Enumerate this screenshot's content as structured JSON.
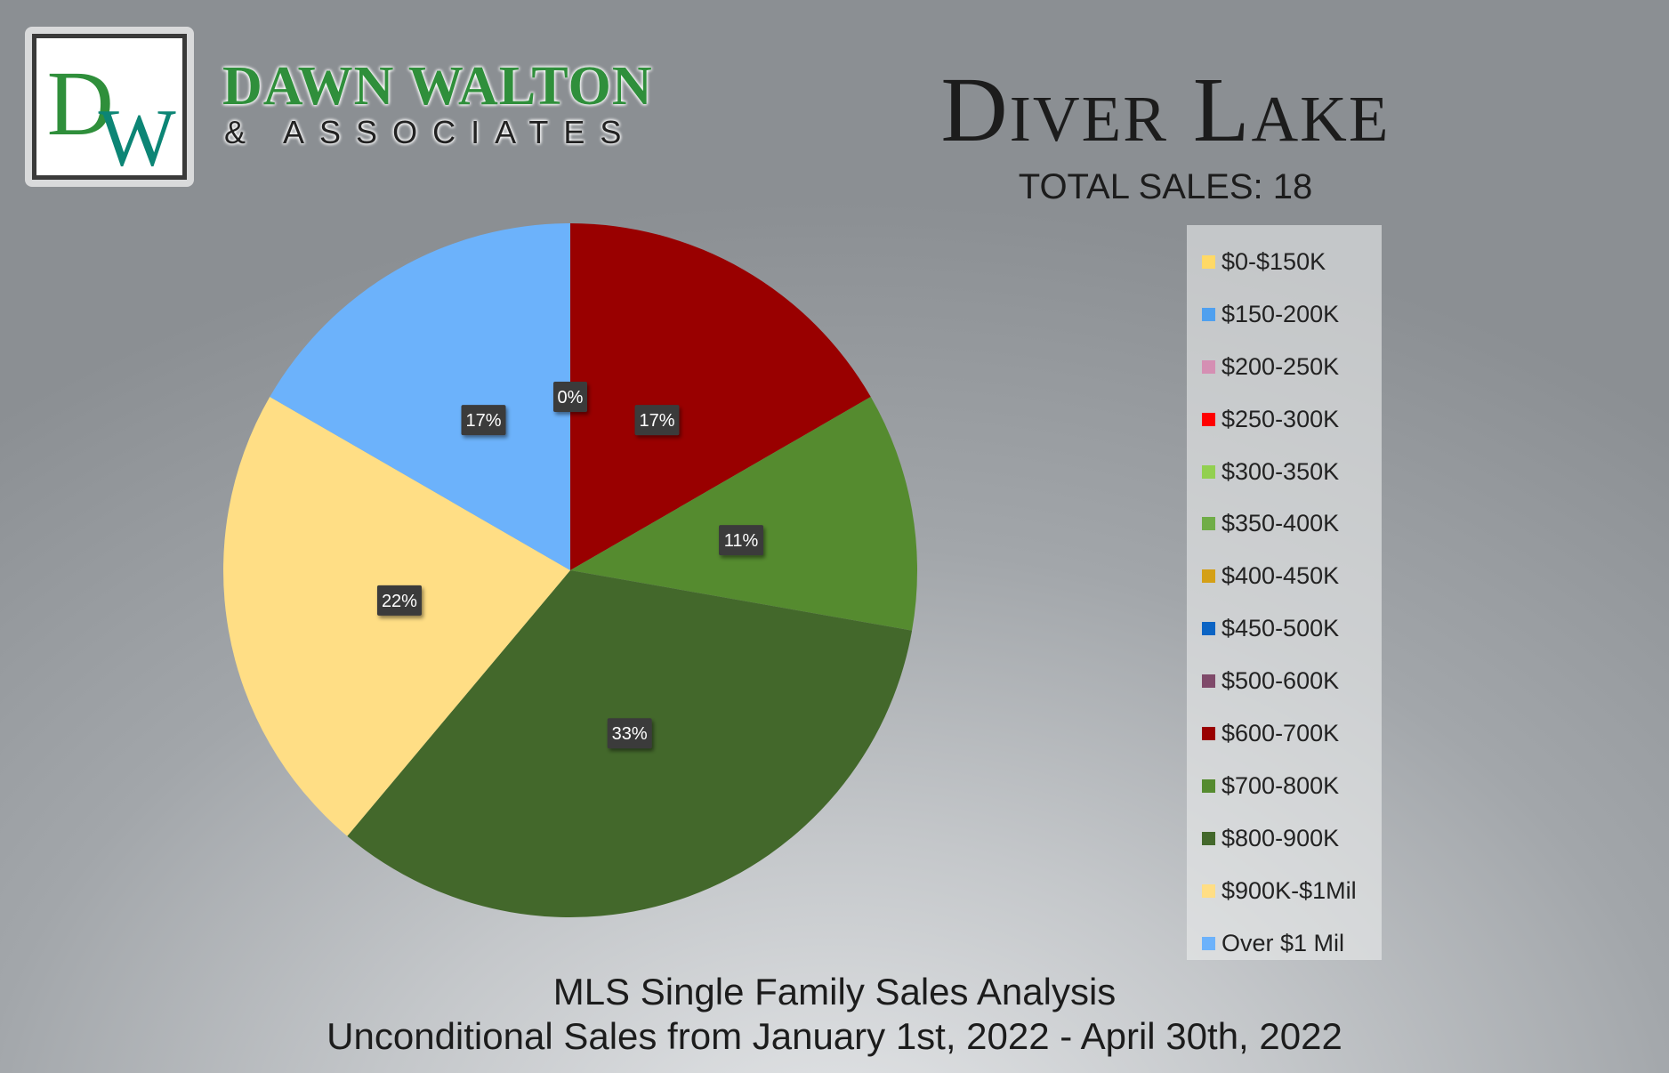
{
  "brand": {
    "monogram": "DW",
    "name": "DAWN WALTON",
    "subtitle": "& ASSOCIATES",
    "colors": {
      "green": "#2f8f3b",
      "teal": "#0c8575"
    }
  },
  "header": {
    "title": "Diver Lake",
    "total_sales": "TOTAL SALES: 18"
  },
  "footer": {
    "line1": "MLS Single Family Sales Analysis",
    "line2": "Unconditional Sales from January 1st, 2022 - April 30th, 2022"
  },
  "chart_data": {
    "type": "pie",
    "title": "",
    "label_format": "percent",
    "legend_position": "right",
    "start_angle_deg": 0,
    "direction": "clockwise",
    "slices": [
      {
        "label": "$0-$150K",
        "value": 0,
        "percent_label": "",
        "color": "#ffd966"
      },
      {
        "label": "$150-200K",
        "value": 0,
        "percent_label": "",
        "color": "#4fa0ef"
      },
      {
        "label": "$200-250K",
        "value": 0,
        "percent_label": "",
        "color": "#d58fb3"
      },
      {
        "label": "$250-300K",
        "value": 0,
        "percent_label": "0%",
        "color": "#ff0000"
      },
      {
        "label": "$300-350K",
        "value": 0,
        "percent_label": "",
        "color": "#92d050"
      },
      {
        "label": "$350-400K",
        "value": 0,
        "percent_label": "",
        "color": "#70ad47"
      },
      {
        "label": "$400-450K",
        "value": 0,
        "percent_label": "",
        "color": "#d4a017"
      },
      {
        "label": "$450-500K",
        "value": 0,
        "percent_label": "",
        "color": "#0b64c4"
      },
      {
        "label": "$500-600K",
        "value": 0,
        "percent_label": "",
        "color": "#7f4a6a"
      },
      {
        "label": "$600-700K",
        "value": 3,
        "percent_label": "17%",
        "color": "#990000"
      },
      {
        "label": "$700-800K",
        "value": 2,
        "percent_label": "11%",
        "color": "#558b2f"
      },
      {
        "label": "$800-900K",
        "value": 6,
        "percent_label": "33%",
        "color": "#43682b"
      },
      {
        "label": "$900K-$1Mil",
        "value": 4,
        "percent_label": "22%",
        "color": "#ffde85"
      },
      {
        "label": "Over $1 Mil",
        "value": 3,
        "percent_label": "17%",
        "color": "#6cb2fb"
      }
    ]
  }
}
